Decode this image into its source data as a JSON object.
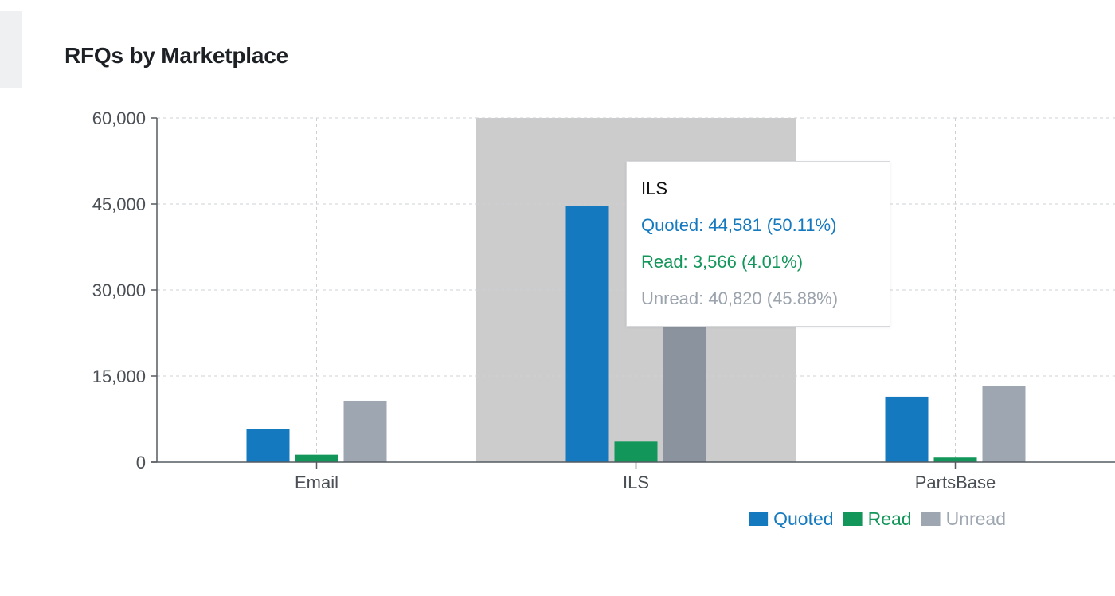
{
  "card": {
    "title": "RFQs by Marketplace"
  },
  "chart_data": {
    "type": "bar",
    "title": "RFQs by Marketplace",
    "categories": [
      "Email",
      "ILS",
      "PartsBase"
    ],
    "series": [
      {
        "name": "Quoted",
        "color": "#1479bf",
        "values": [
          5700,
          44581,
          11400
        ]
      },
      {
        "name": "Read",
        "color": "#13965a",
        "values": [
          1300,
          3566,
          800
        ]
      },
      {
        "name": "Unread",
        "color": "#9ea7b1",
        "hover_color": "#8a939e",
        "values": [
          10700,
          40820,
          13300
        ]
      }
    ],
    "ylim": [
      0,
      60000
    ],
    "yticks": [
      0,
      15000,
      30000,
      45000,
      60000
    ],
    "ytick_labels": [
      "0",
      "15,000",
      "30,000",
      "45,000",
      "60,000"
    ],
    "grid": true,
    "legend_position": "bottom-right",
    "highlighted_category": "ILS"
  },
  "tooltip": {
    "title": "ILS",
    "quoted": "Quoted: 44,581 (50.11%)",
    "read": "Read: 3,566 (4.01%)",
    "unread": "Unread: 40,820 (45.88%)"
  }
}
